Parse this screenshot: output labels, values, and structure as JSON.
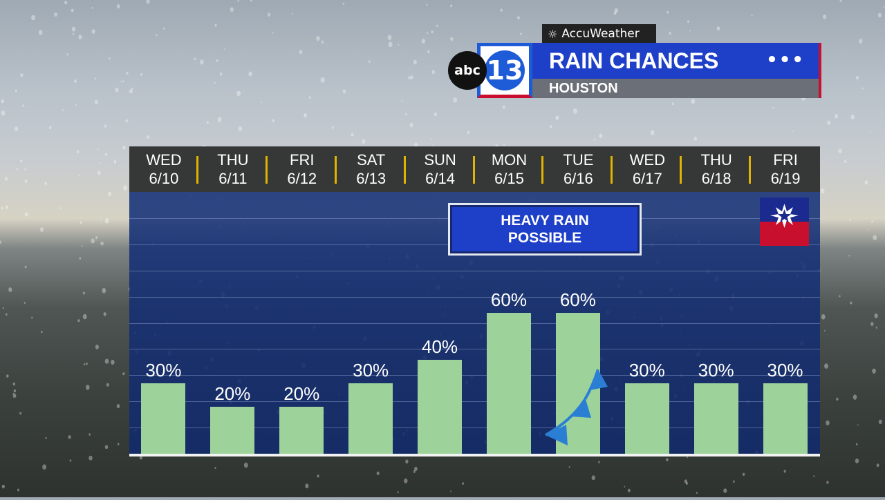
{
  "branding": {
    "provider": "AccuWeather",
    "station_abc": "abc",
    "station_num": "13",
    "title": "RAIN CHANCES",
    "location": "HOUSTON",
    "menu_dots": "•••"
  },
  "callout": {
    "line1": "HEAVY RAIN",
    "line2": "POSSIBLE"
  },
  "icons": {
    "flag": "juneteenth-flag-icon",
    "front": "cold-front-icon",
    "sun": "sun-icon"
  },
  "colors": {
    "bar": "#9dd39a",
    "plot_bg": "#163278",
    "title_bg": "#1e3fc8",
    "accent_red": "#c8102e",
    "separator": "#e0b400"
  },
  "chart_data": {
    "type": "bar",
    "title": "RAIN CHANCES",
    "categories": [
      {
        "day": "WED",
        "date": "6/10"
      },
      {
        "day": "THU",
        "date": "6/11"
      },
      {
        "day": "FRI",
        "date": "6/12"
      },
      {
        "day": "SAT",
        "date": "6/13"
      },
      {
        "day": "SUN",
        "date": "6/14"
      },
      {
        "day": "MON",
        "date": "6/15"
      },
      {
        "day": "TUE",
        "date": "6/16"
      },
      {
        "day": "WED",
        "date": "6/17"
      },
      {
        "day": "THU",
        "date": "6/18"
      },
      {
        "day": "FRI",
        "date": "6/19"
      }
    ],
    "values": [
      30,
      20,
      20,
      30,
      40,
      60,
      60,
      30,
      30,
      30
    ],
    "labels": [
      "30%",
      "20%",
      "20%",
      "30%",
      "40%",
      "60%",
      "60%",
      "30%",
      "30%",
      "30%"
    ],
    "ylim": [
      0,
      100
    ],
    "grid": true
  }
}
